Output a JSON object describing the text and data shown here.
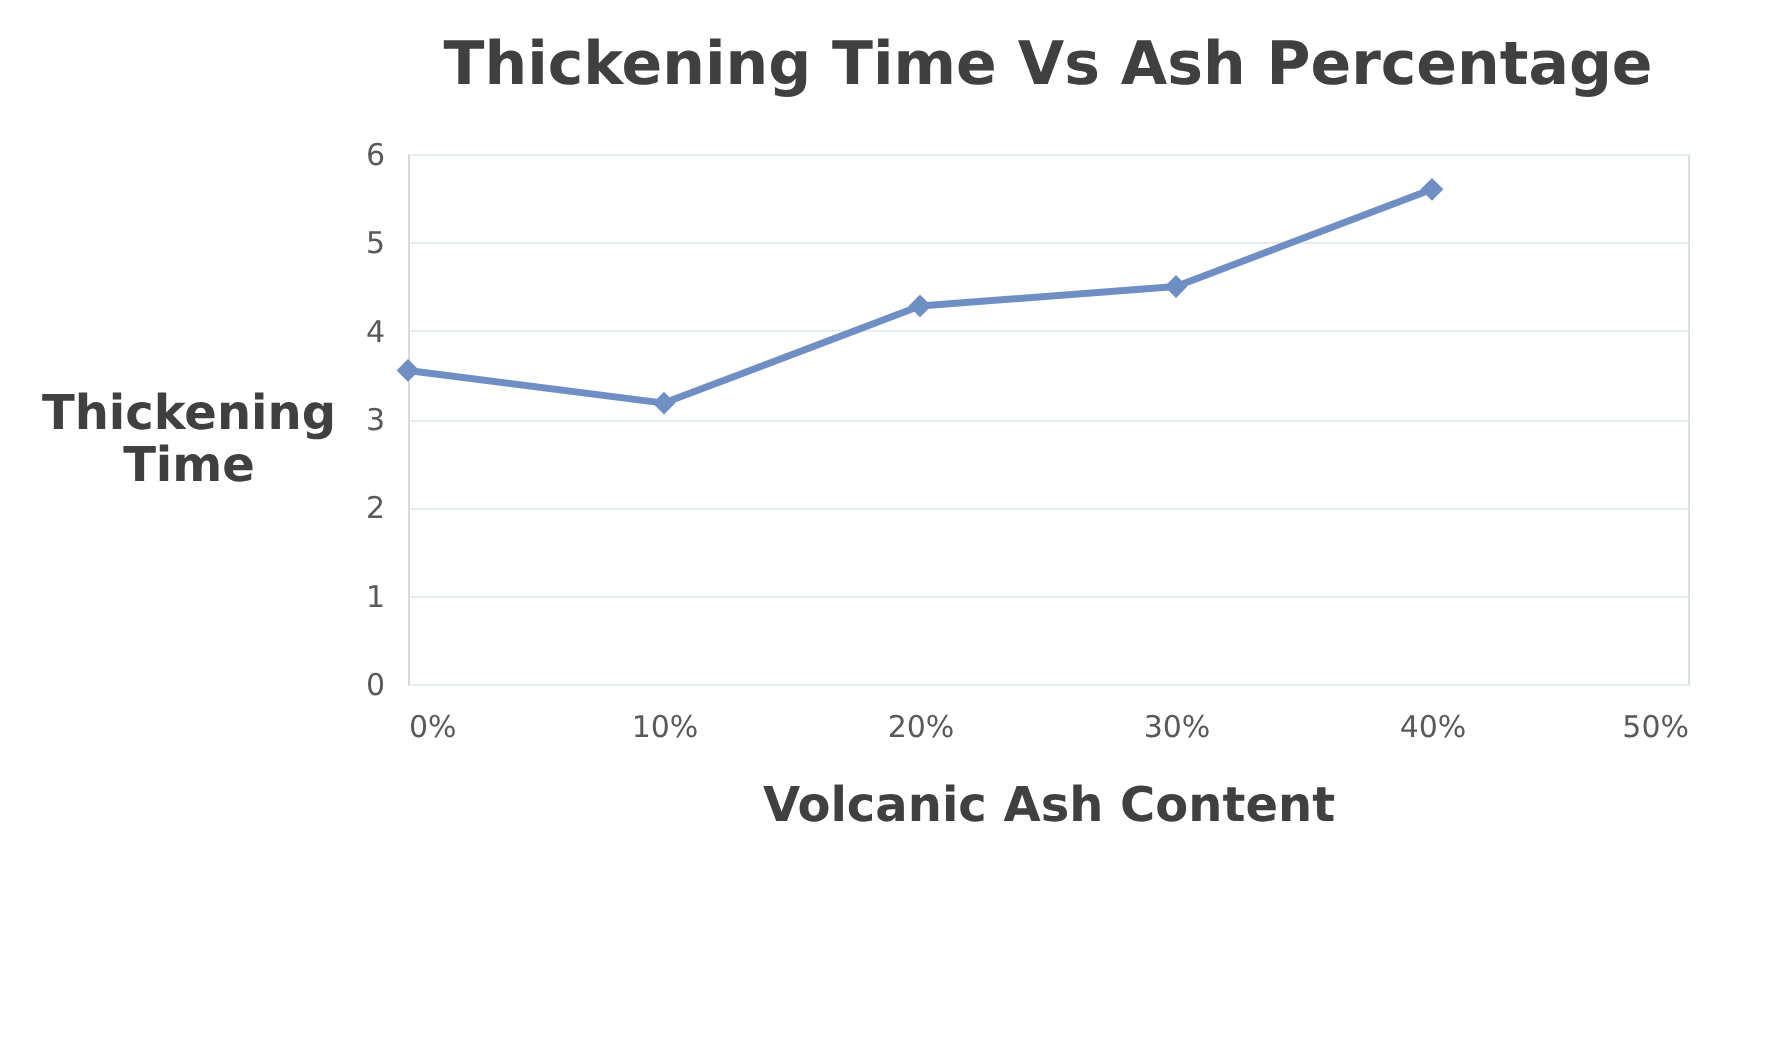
{
  "chart_data": {
    "type": "line",
    "title": "Thickening Time Vs Ash Percentage",
    "xlabel": "Volcanic Ash Content",
    "ylabel": "Thickening Time",
    "x": [
      0,
      10,
      20,
      30,
      40
    ],
    "series": [
      {
        "color": "#6f8fc4",
        "values": [
          3.55,
          3.18,
          4.28,
          4.5,
          5.6
        ]
      }
    ],
    "xlim": [
      0,
      50
    ],
    "xticks": [
      {
        "value": 0,
        "label": "0%"
      },
      {
        "value": 10,
        "label": "10%"
      },
      {
        "value": 20,
        "label": "20%"
      },
      {
        "value": 30,
        "label": "30%"
      },
      {
        "value": 40,
        "label": "40%"
      },
      {
        "value": 50,
        "label": "50%"
      }
    ],
    "ylim": [
      0,
      6
    ],
    "yticks": [
      0,
      1,
      2,
      3,
      4,
      5,
      6
    ],
    "grid": "y",
    "marker": "diamond",
    "line_style": "solid"
  }
}
